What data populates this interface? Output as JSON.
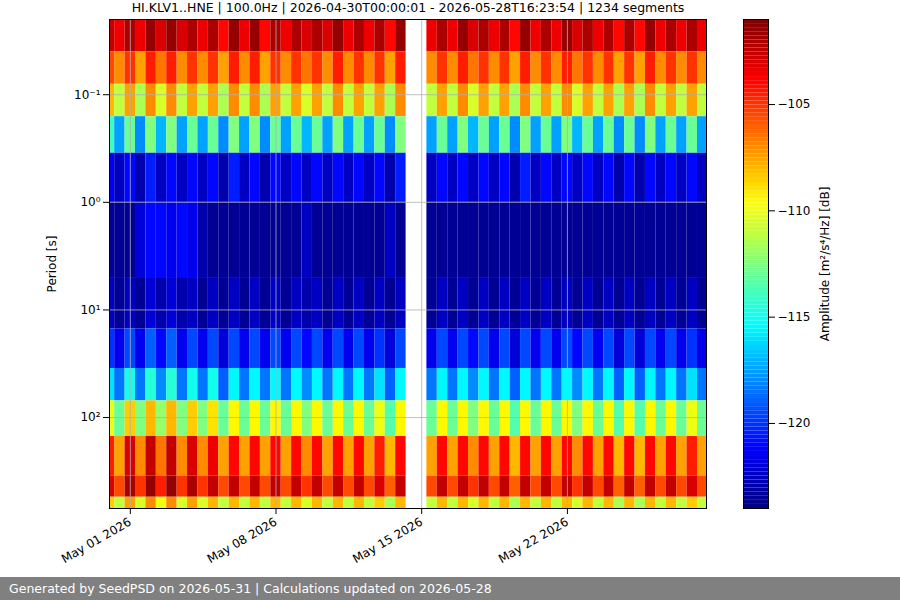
{
  "chart_data": {
    "type": "heatmap",
    "title": "HI.KLV1..HNE | 100.0Hz | 2026-04-30T00:00:01 - 2026-05-28T16:23:54 | 1234 segments",
    "footer": "Generated by SeedPSD on 2026-05-31 | Calculations updated on 2026-05-28",
    "ylabel": "Period [s]",
    "log": "y",
    "grid": true,
    "color": "jet",
    "xlim": [
      "2026-04-30T00:00:01Z",
      "2026-05-28T16:23:54Z"
    ],
    "xticks": [
      {
        "value": "2026-05-01T00:00Z",
        "label": "May 01 2026"
      },
      {
        "value": "2026-05-08T00:00Z",
        "label": "May 08 2026"
      },
      {
        "value": "2026-05-15T00:00Z",
        "label": "May 15 2026"
      },
      {
        "value": "2026-05-22T00:00Z",
        "label": "May 22 2026"
      }
    ],
    "ylim": [
      0.02,
      700
    ],
    "yticks": [
      {
        "value": 0.1,
        "label": "10⁻¹"
      },
      {
        "value": 1,
        "label": "10⁰"
      },
      {
        "value": 10,
        "label": "10¹"
      },
      {
        "value": 100,
        "label": "10²"
      }
    ],
    "colorbar": {
      "label": "Amplitude [m²/s⁴/Hz] [dB]",
      "range": [
        -124,
        -101
      ],
      "ticks": [
        -120,
        -115,
        -110,
        -105
      ]
    },
    "x_edges": [
      "2026-04-30T00:00:01Z",
      "2026-04-30T06:00Z",
      "2026-04-30T18:00Z",
      "2026-05-01T06:00Z",
      "2026-05-01T18:00Z",
      "2026-05-02T06:00Z",
      "2026-05-02T18:00Z",
      "2026-05-03T06:00Z",
      "2026-05-03T18:00Z",
      "2026-05-04T06:00Z",
      "2026-05-04T18:00Z",
      "2026-05-05T06:00Z",
      "2026-05-05T18:00Z",
      "2026-05-06T06:00Z",
      "2026-05-06T18:00Z",
      "2026-05-07T06:00Z",
      "2026-05-07T18:00Z",
      "2026-05-08T06:00Z",
      "2026-05-08T18:00Z",
      "2026-05-09T06:00Z",
      "2026-05-09T18:00Z",
      "2026-05-10T06:00Z",
      "2026-05-10T18:00Z",
      "2026-05-11T06:00Z",
      "2026-05-11T18:00Z",
      "2026-05-12T06:00Z",
      "2026-05-12T18:00Z",
      "2026-05-13T06:00Z",
      "2026-05-13T18:00Z",
      "2026-05-14T06:00Z",
      "2026-05-14T18:00Z",
      "2026-05-15T06:00Z",
      "2026-05-15T18:00Z",
      "2026-05-16T06:00Z",
      "2026-05-16T18:00Z",
      "2026-05-17T06:00Z",
      "2026-05-17T18:00Z",
      "2026-05-18T06:00Z",
      "2026-05-18T18:00Z",
      "2026-05-19T06:00Z",
      "2026-05-19T18:00Z",
      "2026-05-20T06:00Z",
      "2026-05-20T18:00Z",
      "2026-05-21T06:00Z",
      "2026-05-21T18:00Z",
      "2026-05-22T06:00Z",
      "2026-05-22T18:00Z",
      "2026-05-23T06:00Z",
      "2026-05-23T18:00Z",
      "2026-05-24T06:00Z",
      "2026-05-24T18:00Z",
      "2026-05-25T06:00Z",
      "2026-05-25T18:00Z",
      "2026-05-26T06:00Z",
      "2026-05-26T18:00Z",
      "2026-05-27T06:00Z",
      "2026-05-27T18:00Z",
      "2026-05-28T06:00Z",
      "2026-05-28T16:23:54Z"
    ],
    "y_edges": [
      0.02,
      0.04,
      0.08,
      0.16,
      0.35,
      1,
      5,
      15,
      35,
      70,
      150,
      350,
      550,
      700
    ],
    "cells": [
      [
        -102.5,
        -103.5,
        -102,
        -103.5,
        -101.5,
        -103,
        -101.5,
        -103,
        -102,
        -103.5,
        -102,
        -104,
        -101.5,
        -103.5,
        -101.5,
        -104,
        -102,
        -103.5,
        -102,
        -103,
        -102,
        -103,
        -101.5,
        -103.5,
        -102,
        -103.5,
        -102,
        -104,
        -101.5,
        null,
        null,
        -103.5,
        -102,
        -103.5,
        -101.5,
        -103,
        -102,
        -103.5,
        -102,
        -104,
        -101.5,
        -103.5,
        -102,
        -103.5,
        -101.5,
        -103,
        -102,
        -103.5,
        -102,
        -104,
        -102,
        -104,
        -101.5,
        -103.5,
        -102,
        -103.5,
        -102,
        -103.5
      ],
      [
        -105.5,
        -107,
        -105,
        -107.5,
        -104.5,
        -106.5,
        -104.5,
        -107,
        -105,
        -107,
        -105,
        -107.5,
        -104.5,
        -107,
        -104.5,
        -107.5,
        -105,
        -107,
        -105,
        -106.5,
        -105,
        -107,
        -104.5,
        -107,
        -105,
        -107,
        -105,
        -107.5,
        -104.5,
        null,
        null,
        -107,
        -105,
        -107,
        -104.5,
        -106.5,
        -105,
        -107,
        -105,
        -107.5,
        -104.5,
        -107,
        -105,
        -107,
        -104.5,
        -106.5,
        -105,
        -107,
        -105,
        -107.5,
        -105,
        -107.5,
        -104.5,
        -107,
        -105,
        -107,
        -105,
        -107
      ],
      [
        -108,
        -111,
        -107.5,
        -111.5,
        -107,
        -110.5,
        -107,
        -111,
        -107.5,
        -111,
        -107.5,
        -111.5,
        -107,
        -111,
        -107,
        -111.5,
        -107.5,
        -111,
        -107.5,
        -110.5,
        -107.5,
        -111,
        -107,
        -111,
        -107.5,
        -111,
        -107.5,
        -111.5,
        -107,
        null,
        null,
        -111,
        -107.5,
        -111,
        -107,
        -110.5,
        -107.5,
        -111,
        -107.5,
        -111.5,
        -107,
        -111,
        -107.5,
        -111,
        -107,
        -110.5,
        -107.5,
        -111,
        -107.5,
        -111.5,
        -107.5,
        -111.5,
        -107,
        -111,
        -107.5,
        -111,
        -107.5,
        -111
      ],
      [
        -114,
        -117.5,
        -113,
        -118,
        -112.5,
        -117,
        -112.5,
        -117.5,
        -113,
        -117.5,
        -113,
        -118,
        -112.5,
        -117.5,
        -112.5,
        -118,
        -113,
        -117.5,
        -113,
        -117,
        -113,
        -117.5,
        -112.5,
        -117.5,
        -113,
        -117.5,
        -113,
        -118,
        -112.5,
        null,
        null,
        -117.5,
        -113,
        -117.5,
        -112.5,
        -117,
        -113,
        -117.5,
        -113,
        -118,
        -112.5,
        -117.5,
        -113,
        -117.5,
        -112.5,
        -117,
        -113,
        -117.5,
        -113,
        -118,
        -113,
        -118,
        -112.5,
        -117.5,
        -113,
        -117.5,
        -113,
        -117.5
      ],
      [
        -121.5,
        -122.5,
        -121,
        -123,
        -120.5,
        -122.5,
        -121,
        -122.5,
        -121,
        -122.5,
        -121,
        -123,
        -120.5,
        -122.5,
        -121,
        -123,
        -121,
        -122.5,
        -121,
        -122.5,
        -121,
        -122.5,
        -121,
        -122.5,
        -121,
        -122.5,
        -121,
        -123,
        -120.5,
        null,
        null,
        -122.5,
        -121,
        -122.5,
        -121,
        -122.5,
        -121,
        -122.5,
        -121,
        -123,
        -120.5,
        -122.5,
        -121,
        -122.5,
        -121,
        -122.5,
        -121,
        -122.5,
        -121,
        -123,
        -121,
        -123,
        -121,
        -122.5,
        -121,
        -122.5,
        -121,
        -122.5
      ],
      [
        -123.5,
        -123.5,
        -123.5,
        -122,
        -121,
        -121,
        -121.5,
        -121,
        -121.5,
        -123,
        -123.5,
        -123.5,
        -123.5,
        -123.5,
        -123.5,
        -123.5,
        -123.5,
        -123.5,
        -123.5,
        -122.5,
        -123.5,
        -123.5,
        -123.5,
        -123.5,
        -123.5,
        -123.5,
        -123.5,
        -122.5,
        -123.5,
        null,
        null,
        -123.5,
        -123.5,
        -123.5,
        -123.5,
        -123.5,
        -123.5,
        -123.5,
        -123.5,
        -123.5,
        -123.5,
        -123.5,
        -123.5,
        -123.5,
        -123.5,
        -123.5,
        -123.5,
        -123.5,
        -123.5,
        -123.5,
        -123.5,
        -123.5,
        -123.5,
        -123.5,
        -123.5,
        -123.5,
        -123.5,
        -123.5
      ],
      [
        -122.5,
        -123.5,
        -122.5,
        -123.5,
        -122,
        -123,
        -122,
        -123,
        -122.5,
        -123.5,
        -122.5,
        -123.5,
        -122.5,
        -123.5,
        -122.5,
        -123.5,
        -122.5,
        -123.5,
        -122.5,
        -123,
        -122.5,
        -123.5,
        -122.5,
        -123.5,
        -122.5,
        -123.5,
        -122.5,
        -123.5,
        -122.5,
        null,
        null,
        -123.5,
        -122.5,
        -123.5,
        -122.5,
        -123.5,
        -122.5,
        -123.5,
        -122.5,
        -123.5,
        -122.5,
        -123.5,
        -122.5,
        -123.5,
        -122.5,
        -123.5,
        -122.5,
        -123.5,
        -122.5,
        -123.5,
        -122.5,
        -123.5,
        -122.5,
        -123.5,
        -122.5,
        -123.5,
        -122.5,
        -123.5
      ],
      [
        -120,
        -121.5,
        -119.5,
        -121.5,
        -119,
        -121,
        -119,
        -121.5,
        -119.5,
        -121.5,
        -119.5,
        -122,
        -119.5,
        -121.5,
        -119.5,
        -121.5,
        -119.5,
        -121.5,
        -119.5,
        -121,
        -119.5,
        -121.5,
        -119.5,
        -121.5,
        -119.5,
        -121.5,
        -120,
        -122,
        -119.5,
        null,
        null,
        -121.5,
        -119.5,
        -121.5,
        -119.5,
        -121,
        -119.5,
        -121.5,
        -119.5,
        -122,
        -119.5,
        -121.5,
        -119.5,
        -121.5,
        -119.5,
        -121,
        -119.5,
        -121.5,
        -119.5,
        -122,
        -119.5,
        -122,
        -119.5,
        -121.5,
        -119.5,
        -121.5,
        -120,
        -121.5
      ],
      [
        -116,
        -118.5,
        -115,
        -118.5,
        -114.5,
        -118,
        -114.5,
        -118.5,
        -115,
        -118.5,
        -115,
        -119,
        -115.5,
        -118.5,
        -115.5,
        -118.5,
        -115.5,
        -118.5,
        -115.5,
        -118,
        -115.5,
        -118.5,
        -115.5,
        -118.5,
        -115.5,
        -118.5,
        -116,
        -119,
        -115.5,
        null,
        null,
        -118.5,
        -115.5,
        -118.5,
        -115.5,
        -118,
        -115.5,
        -118.5,
        -115.5,
        -119,
        -115.5,
        -118.5,
        -115.5,
        -118.5,
        -115.5,
        -118,
        -115.5,
        -118.5,
        -115.5,
        -119,
        -115.5,
        -119,
        -115.5,
        -118.5,
        -115.5,
        -118.5,
        -116,
        -118.5
      ],
      [
        -110,
        -113,
        -108.5,
        -112.5,
        -108,
        -112,
        -108,
        -112.5,
        -108.5,
        -112.5,
        -109,
        -113,
        -109.5,
        -113,
        -109.5,
        -113,
        -109.5,
        -113,
        -109.5,
        -112.5,
        -109.5,
        -113,
        -109.5,
        -113,
        -109.5,
        -113,
        -110,
        -113.5,
        -109.5,
        null,
        null,
        -113,
        -109.5,
        -113,
        -109.5,
        -112.5,
        -109.5,
        -113,
        -109.5,
        -113.5,
        -109.5,
        -113,
        -109.5,
        -113,
        -109.5,
        -112.5,
        -109.5,
        -113,
        -109.5,
        -113.5,
        -109.5,
        -113.5,
        -109.5,
        -113,
        -109.5,
        -113,
        -110,
        -113
      ],
      [
        -104.5,
        -107.5,
        -103,
        -107,
        -102.5,
        -106.5,
        -102.5,
        -107,
        -103,
        -107,
        -103.5,
        -107.5,
        -104,
        -107.5,
        -104,
        -107.5,
        -104,
        -107.5,
        -104,
        -107,
        -104,
        -107.5,
        -104,
        -107.5,
        -104,
        -107.5,
        -104.5,
        -108,
        -104,
        null,
        null,
        -107.5,
        -104,
        -107.5,
        -104,
        -107,
        -104,
        -107.5,
        -104,
        -108,
        -104,
        -107.5,
        -104,
        -107.5,
        -104,
        -107,
        -104,
        -107.5,
        -104,
        -108,
        -104,
        -108,
        -104,
        -107.5,
        -104,
        -107.5,
        -104.5,
        -107.5
      ],
      [
        -103,
        -105.5,
        -102,
        -105,
        -101.5,
        -104.5,
        -101.5,
        -105,
        -102,
        -105,
        -102.5,
        -105.5,
        -102.5,
        -105.5,
        -102.5,
        -105.5,
        -102.5,
        -105.5,
        -102.5,
        -105,
        -102.5,
        -105.5,
        -102.5,
        -105.5,
        -102.5,
        -105.5,
        -103,
        -106,
        -102.5,
        null,
        null,
        -105.5,
        -102.5,
        -105.5,
        -102.5,
        -105,
        -102.5,
        -105.5,
        -102.5,
        -106,
        -102.5,
        -105.5,
        -102.5,
        -105.5,
        -102.5,
        -105,
        -102.5,
        -105.5,
        -102.5,
        -106,
        -102.5,
        -106,
        -102.5,
        -105.5,
        -102.5,
        -105.5,
        -103,
        -105.5
      ],
      [
        -108.5,
        -111,
        -107.5,
        -110.5,
        -107,
        -110,
        -107,
        -110.5,
        -107.5,
        -110.5,
        -108,
        -111,
        -108,
        -111,
        -108,
        -111,
        -108,
        -111,
        -108,
        -110.5,
        -108,
        -111,
        -108,
        -111,
        -108,
        -111,
        -108.5,
        -111.5,
        -108,
        null,
        null,
        -111,
        -108,
        -111,
        -108,
        -110.5,
        -108,
        -111,
        -108,
        -111.5,
        -108,
        -111,
        -108,
        -111,
        -108,
        -110.5,
        -108,
        -111,
        -108,
        -111.5,
        -108,
        -111.5,
        -108,
        -111,
        -108,
        -111,
        -108.5,
        -111
      ]
    ]
  }
}
